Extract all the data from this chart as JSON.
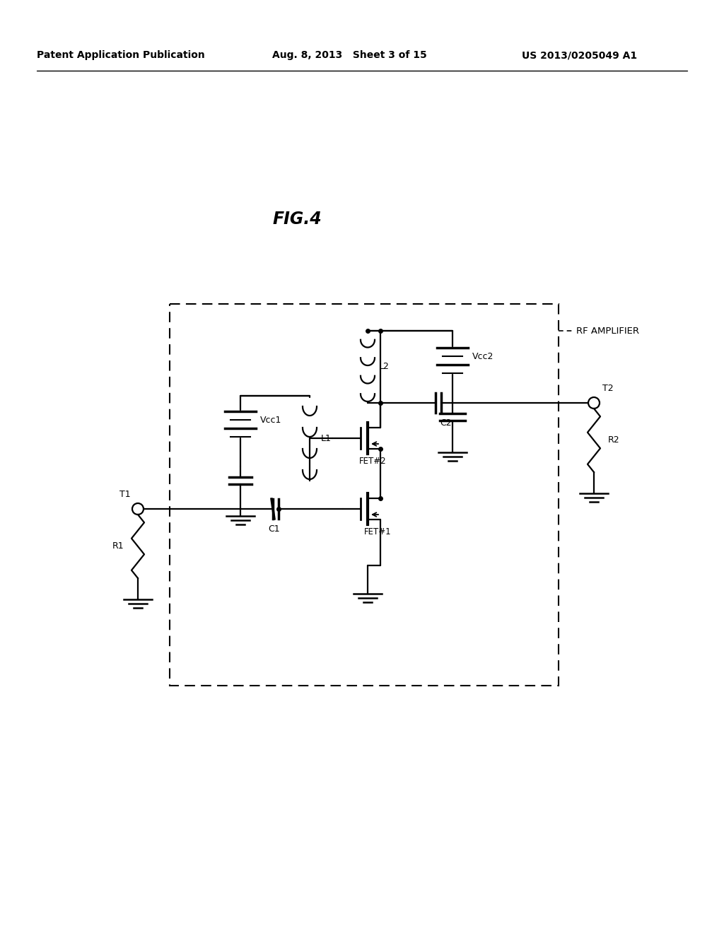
{
  "title": "FIG.4",
  "header_left": "Patent Application Publication",
  "header_mid": "Aug. 8, 2013   Sheet 3 of 15",
  "header_right": "US 2013/0205049 A1",
  "rf_label": "RF AMPLIFIER",
  "background": "#ffffff",
  "line_color": "#000000",
  "fig_width": 10.24,
  "fig_height": 13.2
}
